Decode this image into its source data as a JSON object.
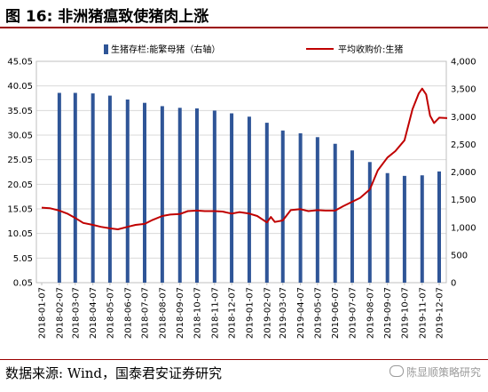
{
  "header": {
    "title": "图 16:  非洲猪瘟致使猪肉上涨"
  },
  "footer": {
    "source": "数据来源:  Wind，国泰君安证券研究",
    "watermark": "陈显顺策略研究"
  },
  "colors": {
    "bar": "#2f5597",
    "line": "#c00000",
    "accent": "#9b0000",
    "grid": "#d9d9d9"
  },
  "chart_data": {
    "type": "bar",
    "legend_position": "top",
    "grid": true,
    "categories": [
      "2018-01-07",
      "2018-02-07",
      "2018-03-07",
      "2018-04-07",
      "2018-05-07",
      "2018-06-07",
      "2018-07-07",
      "2018-08-07",
      "2018-09-07",
      "2018-10-07",
      "2018-11-07",
      "2018-12-07",
      "2019-01-07",
      "2019-02-07",
      "2019-03-07",
      "2019-04-07",
      "2019-05-07",
      "2019-06-07",
      "2019-07-07",
      "2019-08-07",
      "2019-09-07",
      "2019-10-07",
      "2019-11-07",
      "2019-12-07"
    ],
    "left_axis": {
      "min": 0.05,
      "max": 45.05,
      "ticks": [
        "0.05",
        "5.05",
        "10.05",
        "15.05",
        "20.05",
        "25.05",
        "30.05",
        "35.05",
        "40.05",
        "45.05"
      ]
    },
    "right_axis": {
      "min": 0,
      "max": 4000,
      "ticks": [
        "0",
        "500",
        "1,000",
        "1,500",
        "2,000",
        "2,500",
        "3,000",
        "3,500",
        "4,000"
      ]
    },
    "series": [
      {
        "name": "生猪存栏:能繁母猪（右轴）",
        "type": "bar",
        "axis": "right",
        "points": [
          {
            "x": "2018-02-07",
            "y": 3430
          },
          {
            "x": "2018-03-07",
            "y": 3430
          },
          {
            "x": "2018-04-07",
            "y": 3420
          },
          {
            "x": "2018-05-07",
            "y": 3380
          },
          {
            "x": "2018-06-07",
            "y": 3310
          },
          {
            "x": "2018-07-07",
            "y": 3250
          },
          {
            "x": "2018-08-07",
            "y": 3190
          },
          {
            "x": "2018-09-07",
            "y": 3160
          },
          {
            "x": "2018-10-07",
            "y": 3150
          },
          {
            "x": "2018-11-07",
            "y": 3110
          },
          {
            "x": "2018-12-07",
            "y": 3060
          },
          {
            "x": "2019-01-07",
            "y": 3000
          },
          {
            "x": "2019-02-07",
            "y": 2890
          },
          {
            "x": "2019-03-07",
            "y": 2750
          },
          {
            "x": "2019-04-07",
            "y": 2700
          },
          {
            "x": "2019-05-07",
            "y": 2630
          },
          {
            "x": "2019-06-07",
            "y": 2510
          },
          {
            "x": "2019-07-07",
            "y": 2390
          },
          {
            "x": "2019-08-07",
            "y": 2180
          },
          {
            "x": "2019-09-07",
            "y": 1980
          },
          {
            "x": "2019-10-07",
            "y": 1930
          },
          {
            "x": "2019-11-07",
            "y": 1940
          },
          {
            "x": "2019-12-07",
            "y": 2010
          }
        ]
      },
      {
        "name": "平均收购价:生猪",
        "type": "line",
        "axis": "left",
        "points": [
          {
            "x": "2018-01-07",
            "y": 15.3
          },
          {
            "x": "2018-01-21",
            "y": 15.2
          },
          {
            "x": "2018-02-07",
            "y": 14.7
          },
          {
            "x": "2018-02-21",
            "y": 14.1
          },
          {
            "x": "2018-03-07",
            "y": 13.2
          },
          {
            "x": "2018-03-21",
            "y": 12.2
          },
          {
            "x": "2018-04-07",
            "y": 11.8
          },
          {
            "x": "2018-04-21",
            "y": 11.4
          },
          {
            "x": "2018-05-07",
            "y": 11.1
          },
          {
            "x": "2018-05-21",
            "y": 10.9
          },
          {
            "x": "2018-06-07",
            "y": 11.4
          },
          {
            "x": "2018-06-21",
            "y": 11.8
          },
          {
            "x": "2018-07-07",
            "y": 12.0
          },
          {
            "x": "2018-07-21",
            "y": 12.8
          },
          {
            "x": "2018-08-07",
            "y": 13.6
          },
          {
            "x": "2018-08-21",
            "y": 13.9
          },
          {
            "x": "2018-09-07",
            "y": 14.0
          },
          {
            "x": "2018-09-21",
            "y": 14.6
          },
          {
            "x": "2018-10-07",
            "y": 14.7
          },
          {
            "x": "2018-10-21",
            "y": 14.6
          },
          {
            "x": "2018-11-07",
            "y": 14.6
          },
          {
            "x": "2018-11-21",
            "y": 14.5
          },
          {
            "x": "2018-12-07",
            "y": 14.1
          },
          {
            "x": "2018-12-21",
            "y": 14.4
          },
          {
            "x": "2019-01-07",
            "y": 14.1
          },
          {
            "x": "2019-01-21",
            "y": 13.6
          },
          {
            "x": "2019-02-07",
            "y": 12.3
          },
          {
            "x": "2019-02-14",
            "y": 13.4
          },
          {
            "x": "2019-02-21",
            "y": 12.4
          },
          {
            "x": "2019-03-07",
            "y": 12.7
          },
          {
            "x": "2019-03-21",
            "y": 14.8
          },
          {
            "x": "2019-04-07",
            "y": 15.0
          },
          {
            "x": "2019-04-21",
            "y": 14.6
          },
          {
            "x": "2019-05-07",
            "y": 14.8
          },
          {
            "x": "2019-05-21",
            "y": 14.7
          },
          {
            "x": "2019-06-07",
            "y": 14.7
          },
          {
            "x": "2019-06-21",
            "y": 15.6
          },
          {
            "x": "2019-07-07",
            "y": 16.5
          },
          {
            "x": "2019-07-21",
            "y": 17.3
          },
          {
            "x": "2019-08-07",
            "y": 19.0
          },
          {
            "x": "2019-08-21",
            "y": 22.9
          },
          {
            "x": "2019-09-07",
            "y": 25.5
          },
          {
            "x": "2019-09-21",
            "y": 26.8
          },
          {
            "x": "2019-10-07",
            "y": 29.0
          },
          {
            "x": "2019-10-21",
            "y": 35.3
          },
          {
            "x": "2019-11-01",
            "y": 38.5
          },
          {
            "x": "2019-11-07",
            "y": 39.5
          },
          {
            "x": "2019-11-14",
            "y": 38.3
          },
          {
            "x": "2019-11-21",
            "y": 34.0
          },
          {
            "x": "2019-11-28",
            "y": 32.5
          },
          {
            "x": "2019-12-07",
            "y": 33.6
          },
          {
            "x": "2019-12-21",
            "y": 33.5
          }
        ]
      }
    ]
  }
}
